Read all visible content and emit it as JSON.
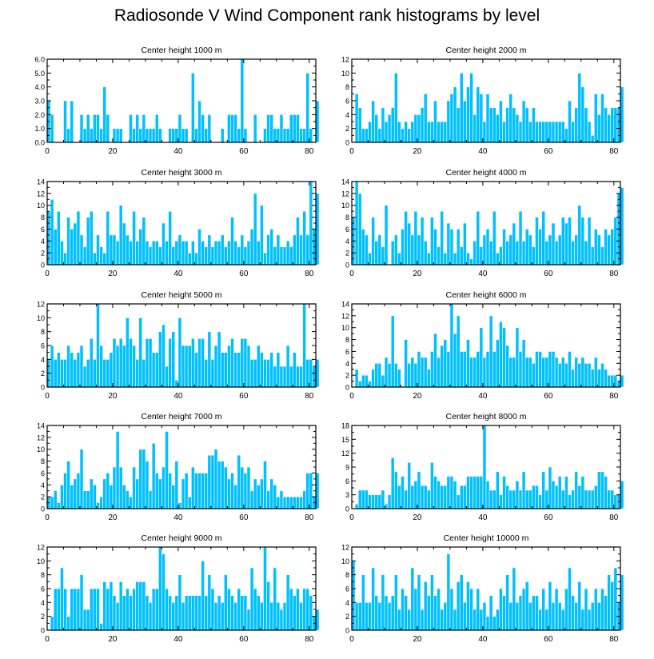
{
  "title": "Radiosonde V Wind Component rank histograms by level",
  "colors": {
    "bar_fill": "#00c0ff",
    "bar_stroke": "#ffffff",
    "axis": "#000000"
  },
  "chart_data": [
    {
      "type": "bar",
      "title": "Center height 1000 m",
      "xlim": [
        0,
        82
      ],
      "ylim": [
        0,
        6
      ],
      "xticks": [
        0,
        20,
        40,
        60,
        80
      ],
      "yticks": [
        0.0,
        1.0,
        2.0,
        3.0,
        4.0,
        5.0,
        6.0
      ],
      "ytick_decimals": 1,
      "values": [
        3,
        2,
        0,
        0,
        0,
        3,
        1,
        3,
        0,
        0,
        2,
        1,
        2,
        1,
        2,
        2,
        1,
        4,
        2,
        0,
        1,
        1,
        1,
        0,
        0,
        2,
        1,
        2,
        1,
        2,
        1,
        1,
        1,
        2,
        1,
        0,
        0,
        1,
        1,
        1,
        2,
        1,
        1,
        0,
        5,
        1,
        3,
        2,
        1,
        2,
        0,
        0,
        0,
        1,
        0,
        2,
        2,
        2,
        1,
        6,
        1,
        0,
        0,
        2,
        0,
        0,
        1,
        2,
        2,
        1,
        1,
        2,
        1,
        1,
        2,
        2,
        2,
        1,
        1,
        5,
        1,
        0,
        3
      ]
    },
    {
      "type": "bar",
      "title": "Center height 2000 m",
      "xlim": [
        0,
        82
      ],
      "ylim": [
        0,
        12
      ],
      "xticks": [
        0,
        20,
        40,
        60,
        80
      ],
      "yticks": [
        0,
        2,
        4,
        6,
        8,
        10,
        12
      ],
      "ytick_decimals": 0,
      "values": [
        0,
        7,
        5,
        2,
        2,
        3,
        6,
        4,
        2,
        5,
        3,
        4,
        5,
        10,
        3,
        2,
        3,
        2,
        3,
        4,
        4,
        5,
        7,
        3,
        3,
        6,
        3,
        3,
        3,
        6,
        7,
        8,
        5,
        10,
        6,
        8,
        10,
        4,
        8,
        7,
        3,
        7,
        5,
        5,
        4,
        6,
        3,
        5,
        7,
        5,
        4,
        3,
        6,
        5,
        3,
        5,
        3,
        3,
        3,
        3,
        3,
        3,
        3,
        3,
        3,
        2,
        6,
        3,
        5,
        10,
        8,
        5,
        3,
        1,
        7,
        4,
        7,
        5,
        4,
        5,
        5,
        5,
        8
      ]
    },
    {
      "type": "bar",
      "title": "Center height 3000 m",
      "xlim": [
        0,
        82
      ],
      "ylim": [
        0,
        14
      ],
      "xticks": [
        0,
        20,
        40,
        60,
        80
      ],
      "yticks": [
        0,
        2,
        4,
        6,
        8,
        10,
        12,
        14
      ],
      "ytick_decimals": 0,
      "values": [
        9,
        11,
        6,
        9,
        4,
        2,
        8,
        6,
        7,
        9,
        5,
        3,
        8,
        9,
        2,
        5,
        3,
        2,
        9,
        5,
        5,
        4,
        10,
        7,
        5,
        4,
        9,
        4,
        6,
        8,
        4,
        3,
        4,
        4,
        3,
        7,
        4,
        9,
        3,
        4,
        5,
        4,
        4,
        2,
        4,
        2,
        6,
        4,
        3,
        5,
        3,
        4,
        4,
        5,
        3,
        4,
        8,
        4,
        3,
        5,
        3,
        4,
        6,
        12,
        4,
        10,
        2,
        5,
        6,
        3,
        5,
        3,
        3,
        4,
        3,
        5,
        8,
        5,
        9,
        5,
        14,
        6,
        12
      ]
    },
    {
      "type": "bar",
      "title": "Center height 4000 m",
      "xlim": [
        0,
        82
      ],
      "ylim": [
        0,
        14
      ],
      "xticks": [
        0,
        20,
        40,
        60,
        80
      ],
      "yticks": [
        0,
        2,
        4,
        6,
        8,
        10,
        12,
        14
      ],
      "ytick_decimals": 0,
      "values": [
        8,
        14,
        12,
        6,
        5,
        2,
        8,
        4,
        5,
        3,
        10,
        0,
        4,
        5,
        2,
        6,
        9,
        7,
        5,
        9,
        5,
        8,
        4,
        2,
        8,
        6,
        3,
        9,
        2,
        7,
        6,
        2,
        6,
        3,
        7,
        2,
        1,
        4,
        9,
        3,
        5,
        6,
        4,
        9,
        2,
        3,
        6,
        4,
        5,
        7,
        4,
        9,
        4,
        6,
        5,
        3,
        8,
        6,
        9,
        4,
        5,
        7,
        4,
        5,
        8,
        7,
        8,
        4,
        5,
        10,
        8,
        4,
        8,
        3,
        6,
        5,
        3,
        6,
        5,
        6,
        8,
        12,
        13
      ]
    },
    {
      "type": "bar",
      "title": "Center height 5000 m",
      "xlim": [
        0,
        82
      ],
      "ylim": [
        0,
        12
      ],
      "xticks": [
        0,
        20,
        40,
        60,
        80
      ],
      "yticks": [
        0,
        2,
        4,
        6,
        8,
        10,
        12
      ],
      "ytick_decimals": 0,
      "values": [
        4,
        6,
        4,
        5,
        4,
        4,
        6,
        5,
        4,
        5,
        6,
        3,
        4,
        7,
        4,
        12,
        6,
        4,
        4,
        5,
        7,
        6,
        7,
        6,
        10,
        7,
        6,
        4,
        10,
        4,
        7,
        7,
        5,
        5,
        8,
        9,
        3,
        7,
        8,
        1,
        10,
        6,
        6,
        6,
        7,
        5,
        7,
        7,
        4,
        8,
        4,
        6,
        8,
        5,
        5,
        6,
        7,
        5,
        5,
        7,
        7,
        6,
        4,
        4,
        6,
        5,
        4,
        4,
        5,
        3,
        5,
        3,
        3,
        6,
        3,
        5,
        3,
        3,
        12,
        4,
        4,
        3,
        4
      ]
    },
    {
      "type": "bar",
      "title": "Center height 6000 m",
      "xlim": [
        0,
        82
      ],
      "ylim": [
        0,
        14
      ],
      "xticks": [
        0,
        20,
        40,
        60,
        80
      ],
      "yticks": [
        0,
        2,
        4,
        6,
        8,
        10,
        12,
        14
      ],
      "ytick_decimals": 0,
      "values": [
        0,
        3,
        1,
        2,
        2,
        1,
        3,
        4,
        4,
        2,
        5,
        4,
        12,
        4,
        3,
        0,
        8,
        4,
        5,
        4,
        6,
        5,
        5,
        3,
        6,
        9,
        5,
        7,
        8,
        6,
        14,
        9,
        12,
        6,
        6,
        8,
        5,
        5,
        6,
        10,
        5,
        6,
        12,
        6,
        8,
        11,
        10,
        7,
        5,
        5,
        10,
        6,
        8,
        5,
        5,
        4,
        6,
        6,
        5,
        5,
        6,
        6,
        5,
        4,
        5,
        4,
        6,
        3,
        5,
        4,
        5,
        4,
        4,
        3,
        5,
        3,
        4,
        3,
        2,
        2,
        2,
        1,
        2
      ]
    },
    {
      "type": "bar",
      "title": "Center height 7000 m",
      "xlim": [
        0,
        82
      ],
      "ylim": [
        0,
        14
      ],
      "xticks": [
        0,
        20,
        40,
        60,
        80
      ],
      "yticks": [
        0,
        2,
        4,
        6,
        8,
        10,
        12,
        14
      ],
      "ytick_decimals": 0,
      "values": [
        2,
        2,
        3,
        1,
        4,
        6,
        8,
        4,
        5,
        6,
        10,
        3,
        3,
        5,
        4,
        1,
        2,
        5,
        6,
        4,
        7,
        13,
        7,
        4,
        3,
        2,
        7,
        5,
        10,
        10,
        8,
        3,
        11,
        6,
        5,
        7,
        13,
        6,
        4,
        8,
        1,
        5,
        6,
        2,
        7,
        6,
        6,
        6,
        6,
        9,
        9,
        10,
        8,
        8,
        7,
        5,
        6,
        4,
        9,
        7,
        6,
        7,
        3,
        5,
        4,
        5,
        8,
        3,
        5,
        4,
        2,
        3,
        2,
        2,
        2,
        2,
        2,
        2,
        3,
        6,
        6,
        2,
        6
      ]
    },
    {
      "type": "bar",
      "title": "Center height 8000 m",
      "xlim": [
        0,
        82
      ],
      "ylim": [
        0,
        18
      ],
      "xticks": [
        0,
        20,
        40,
        60,
        80
      ],
      "yticks": [
        0,
        3,
        6,
        9,
        12,
        15,
        18
      ],
      "ytick_decimals": 0,
      "values": [
        0,
        1,
        4,
        4,
        4,
        3,
        3,
        3,
        3,
        4,
        1,
        3,
        11,
        8,
        5,
        7,
        4,
        10,
        5,
        6,
        8,
        5,
        5,
        4,
        10,
        7,
        6,
        5,
        5,
        7,
        7,
        6,
        3,
        5,
        5,
        7,
        7,
        7,
        7,
        7,
        18,
        6,
        4,
        4,
        8,
        3,
        7,
        5,
        4,
        4,
        6,
        4,
        8,
        4,
        4,
        5,
        5,
        3,
        8,
        4,
        9,
        6,
        5,
        7,
        4,
        7,
        3,
        4,
        8,
        5,
        7,
        4,
        4,
        4,
        5,
        8,
        8,
        7,
        4,
        4,
        3,
        3,
        6
      ]
    },
    {
      "type": "bar",
      "title": "Center height 9000 m",
      "xlim": [
        0,
        82
      ],
      "ylim": [
        0,
        12
      ],
      "xticks": [
        0,
        20,
        40,
        60,
        80
      ],
      "yticks": [
        0,
        2,
        4,
        6,
        8,
        10,
        12
      ],
      "ytick_decimals": 0,
      "values": [
        0,
        2,
        6,
        6,
        9,
        6,
        2,
        6,
        6,
        6,
        8,
        3,
        3,
        6,
        6,
        6,
        1,
        7,
        6,
        7,
        5,
        4,
        7,
        5,
        6,
        5,
        6,
        7,
        7,
        7,
        5,
        4,
        6,
        6,
        12,
        11,
        6,
        5,
        4,
        5,
        8,
        4,
        5,
        5,
        5,
        5,
        5,
        10,
        5,
        8,
        6,
        4,
        5,
        4,
        8,
        6,
        5,
        4,
        6,
        5,
        5,
        3,
        9,
        6,
        5,
        4,
        12,
        7,
        4,
        9,
        4,
        3,
        4,
        8,
        6,
        5,
        6,
        4,
        6,
        6,
        5,
        2,
        3
      ]
    },
    {
      "type": "bar",
      "title": "Center height 10000 m",
      "xlim": [
        0,
        82
      ],
      "ylim": [
        0,
        12
      ],
      "xticks": [
        0,
        20,
        40,
        60,
        80
      ],
      "yticks": [
        0,
        2,
        4,
        6,
        8,
        10,
        12
      ],
      "ytick_decimals": 0,
      "values": [
        10,
        4,
        4,
        8,
        4,
        4,
        9,
        5,
        4,
        8,
        5,
        4,
        5,
        8,
        3,
        6,
        5,
        3,
        9,
        6,
        8,
        3,
        7,
        5,
        8,
        5,
        6,
        3,
        4,
        11,
        6,
        3,
        7,
        8,
        4,
        7,
        6,
        3,
        6,
        3,
        4,
        2,
        5,
        2,
        3,
        6,
        5,
        8,
        4,
        9,
        4,
        5,
        6,
        7,
        4,
        5,
        5,
        3,
        6,
        3,
        7,
        4,
        6,
        4,
        3,
        6,
        9,
        5,
        4,
        7,
        3,
        6,
        3,
        4,
        6,
        4,
        6,
        5,
        8,
        7,
        9,
        4,
        8
      ]
    }
  ]
}
